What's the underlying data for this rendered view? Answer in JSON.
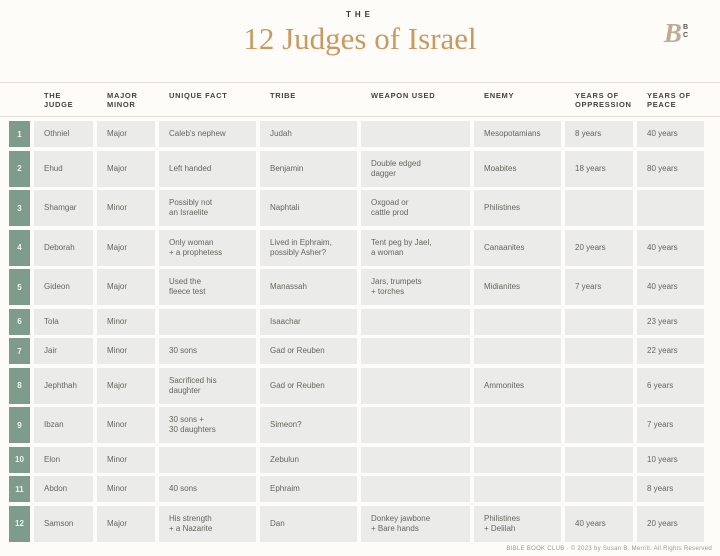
{
  "page": {
    "kicker": "THE",
    "title": "12 Judges of Israel",
    "footer": "BIBLE BOOK CLUB · © 2023 by Susan B. Merrill. All Rights Reserved",
    "logo": {
      "main_letter": "B",
      "sub_top": "B",
      "sub_bottom": "C"
    }
  },
  "colors": {
    "accent_gold": "#c89a5f",
    "badge_green": "#7d9c8c",
    "cell_gray": "#ebebe9",
    "heading_text": "#3b3a33",
    "cell_text": "#66665f"
  },
  "table": {
    "columns": [
      "THE\nJUDGE",
      "MAJOR\nMINOR",
      "UNIQUE FACT",
      "TRIBE",
      "WEAPON USED",
      "ENEMY",
      "YEARS OF\nOPPRESSION",
      "YEARS OF\nPEACE"
    ],
    "rows": [
      {
        "num": "1",
        "judge": "Othniel",
        "major_minor": "Major",
        "unique_fact": "Caleb's nephew",
        "tribe": "Judah",
        "weapon_used": "",
        "enemy": "Mesopotamians",
        "years_oppression": "8 years",
        "years_peace": "40 years"
      },
      {
        "num": "2",
        "judge": "Ehud",
        "major_minor": "Major",
        "unique_fact": "Left handed",
        "tribe": "Benjamin",
        "weapon_used": "Double edged\ndagger",
        "enemy": "Moabites",
        "years_oppression": "18 years",
        "years_peace": "80 years"
      },
      {
        "num": "3",
        "judge": "Shamgar",
        "major_minor": "Minor",
        "unique_fact": "Possibly not\nan Israelite",
        "tribe": "Naphtali",
        "weapon_used": "Oxgoad or\ncattle prod",
        "enemy": "Philistines",
        "years_oppression": "",
        "years_peace": ""
      },
      {
        "num": "4",
        "judge": "Deborah",
        "major_minor": "Major",
        "unique_fact": "Only woman\n+ a prophetess",
        "tribe": "Lived in Ephraim,\npossibly Asher?",
        "weapon_used": "Tent peg by Jael,\na woman",
        "enemy": "Canaanites",
        "years_oppression": "20 years",
        "years_peace": "40 years"
      },
      {
        "num": "5",
        "judge": "Gideon",
        "major_minor": "Major",
        "unique_fact": "Used the\nfleece test",
        "tribe": "Manassah",
        "weapon_used": "Jars, trumpets\n+ torches",
        "enemy": "Midianites",
        "years_oppression": "7 years",
        "years_peace": "40 years"
      },
      {
        "num": "6",
        "judge": "Tola",
        "major_minor": "Minor",
        "unique_fact": "",
        "tribe": "Isaachar",
        "weapon_used": "",
        "enemy": "",
        "years_oppression": "",
        "years_peace": "23 years"
      },
      {
        "num": "7",
        "judge": "Jair",
        "major_minor": "Minor",
        "unique_fact": "30 sons",
        "tribe": "Gad or Reuben",
        "weapon_used": "",
        "enemy": "",
        "years_oppression": "",
        "years_peace": "22 years"
      },
      {
        "num": "8",
        "judge": "Jephthah",
        "major_minor": "Major",
        "unique_fact": "Sacrificed his\ndaughter",
        "tribe": "Gad or Reuben",
        "weapon_used": "",
        "enemy": "Ammonites",
        "years_oppression": "",
        "years_peace": "6 years"
      },
      {
        "num": "9",
        "judge": "Ibzan",
        "major_minor": "Minor",
        "unique_fact": "30 sons +\n30 daughters",
        "tribe": "Simeon?",
        "weapon_used": "",
        "enemy": "",
        "years_oppression": "",
        "years_peace": "7 years"
      },
      {
        "num": "10",
        "judge": "Elon",
        "major_minor": "Minor",
        "unique_fact": "",
        "tribe": "Zebulun",
        "weapon_used": "",
        "enemy": "",
        "years_oppression": "",
        "years_peace": "10 years"
      },
      {
        "num": "11",
        "judge": "Abdon",
        "major_minor": "Minor",
        "unique_fact": "40 sons",
        "tribe": "Ephraim",
        "weapon_used": "",
        "enemy": "",
        "years_oppression": "",
        "years_peace": "8 years"
      },
      {
        "num": "12",
        "judge": "Samson",
        "major_minor": "Major",
        "unique_fact": "His strength\n+ a Nazarite",
        "tribe": "Dan",
        "weapon_used": "Donkey jawbone\n+ Bare hands",
        "enemy": "Philistines\n+ Delilah",
        "years_oppression": "40 years",
        "years_peace": "20 years"
      }
    ]
  }
}
